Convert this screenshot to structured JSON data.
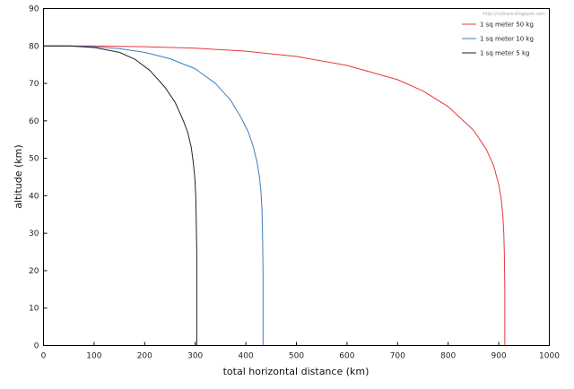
{
  "chart_data": {
    "type": "line",
    "xlabel": "total horizontal distance  (km)",
    "ylabel": "altitude (km)",
    "xlim": [
      0,
      1000
    ],
    "ylim": [
      0,
      90
    ],
    "xticks": [
      0,
      100,
      200,
      300,
      400,
      500,
      600,
      700,
      800,
      900,
      1000
    ],
    "yticks": [
      0,
      10,
      20,
      30,
      40,
      50,
      60,
      70,
      80,
      90
    ],
    "grid": false,
    "legend_position": "top-right",
    "watermark": "http://cotharo.blogspot.com",
    "series": [
      {
        "name": "1 sq meter 50 kg",
        "color": "#e8373a",
        "points": [
          [
            0,
            80
          ],
          [
            100,
            80
          ],
          [
            200,
            79.8
          ],
          [
            300,
            79.4
          ],
          [
            400,
            78.6
          ],
          [
            500,
            77.2
          ],
          [
            600,
            74.8
          ],
          [
            700,
            71
          ],
          [
            750,
            68
          ],
          [
            800,
            63.8
          ],
          [
            850,
            57.5
          ],
          [
            875,
            52.5
          ],
          [
            890,
            48
          ],
          [
            900,
            43
          ],
          [
            905,
            39
          ],
          [
            908,
            35
          ],
          [
            910,
            30
          ],
          [
            911,
            25
          ],
          [
            912,
            15
          ],
          [
            912,
            0
          ]
        ]
      },
      {
        "name": "1 sq meter 10 kg",
        "color": "#3a7fbf",
        "points": [
          [
            0,
            80
          ],
          [
            50,
            80
          ],
          [
            100,
            79.8
          ],
          [
            150,
            79.3
          ],
          [
            200,
            78.3
          ],
          [
            250,
            76.6
          ],
          [
            300,
            73.9
          ],
          [
            340,
            70
          ],
          [
            370,
            65.5
          ],
          [
            390,
            61
          ],
          [
            405,
            57
          ],
          [
            415,
            53
          ],
          [
            422,
            49
          ],
          [
            427,
            45
          ],
          [
            430,
            41
          ],
          [
            432,
            36
          ],
          [
            433,
            30
          ],
          [
            434,
            20
          ],
          [
            434,
            0
          ]
        ]
      },
      {
        "name": "1 sq meter 5 kg",
        "color": "#222222",
        "points": [
          [
            0,
            80
          ],
          [
            50,
            80
          ],
          [
            100,
            79.6
          ],
          [
            150,
            78.3
          ],
          [
            180,
            76.5
          ],
          [
            210,
            73.5
          ],
          [
            240,
            69
          ],
          [
            260,
            65
          ],
          [
            275,
            60.5
          ],
          [
            285,
            57
          ],
          [
            292,
            53
          ],
          [
            296,
            49
          ],
          [
            299,
            45
          ],
          [
            301,
            40
          ],
          [
            302,
            33
          ],
          [
            303,
            25
          ],
          [
            303,
            0
          ]
        ]
      }
    ]
  }
}
